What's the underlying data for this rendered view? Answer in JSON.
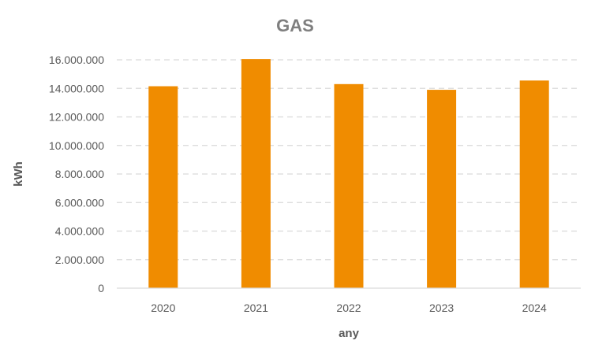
{
  "chart_data": {
    "type": "bar",
    "title": "GAS",
    "xlabel": "any",
    "ylabel": "kWh",
    "categories": [
      "2020",
      "2021",
      "2022",
      "2023",
      "2024"
    ],
    "values": [
      14150000,
      16050000,
      14300000,
      13900000,
      14550000
    ],
    "ylim": [
      0,
      16000000
    ],
    "ytick_labels": [
      "0",
      "2.000.000",
      "4.000.000",
      "6.000.000",
      "8.000.000",
      "10.000.000",
      "12.000.000",
      "14.000.000",
      "16.000.000"
    ],
    "grid": true,
    "grid_style": "dashed",
    "bar_color": "#F08C00",
    "grid_color": "#D9D9D9",
    "legend": "none"
  }
}
